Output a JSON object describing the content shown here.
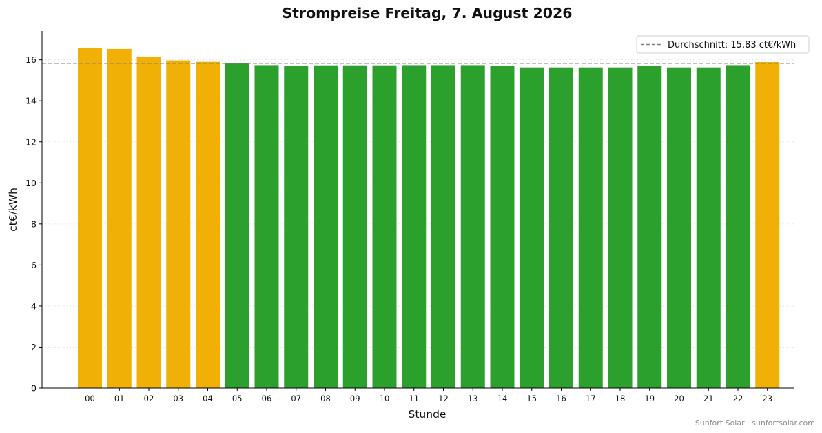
{
  "chart_data": {
    "type": "bar",
    "title": "Strompreise Freitag, 7. August 2026",
    "xlabel": "Stunde",
    "ylabel": "ct€/kWh",
    "ylim": [
      0,
      17.4
    ],
    "yticks": [
      0,
      2,
      4,
      6,
      8,
      10,
      12,
      14,
      16
    ],
    "grid": "y-dotted",
    "categories": [
      "00",
      "01",
      "02",
      "03",
      "04",
      "05",
      "06",
      "07",
      "08",
      "09",
      "10",
      "11",
      "12",
      "13",
      "14",
      "15",
      "16",
      "17",
      "18",
      "19",
      "20",
      "21",
      "22",
      "23"
    ],
    "values": [
      16.57,
      16.53,
      16.16,
      15.97,
      15.9,
      15.82,
      15.74,
      15.7,
      15.73,
      15.73,
      15.73,
      15.74,
      15.74,
      15.74,
      15.7,
      15.63,
      15.63,
      15.63,
      15.63,
      15.7,
      15.63,
      15.63,
      15.74,
      15.89
    ],
    "colors": {
      "above_average": "#f0b005",
      "below_average": "#2ca02c",
      "average_line": "#808080"
    },
    "average": {
      "value": 15.83,
      "label": "Durchschnitt: 15.83 ct€/kWh"
    },
    "legend_position": "top-right"
  },
  "footer": {
    "credit": "Sunfort Solar · sunfortsolar.com"
  }
}
